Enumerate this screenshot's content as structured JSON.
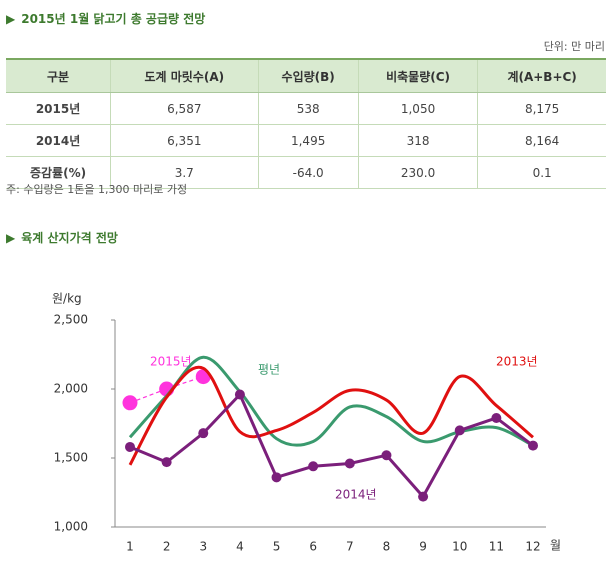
{
  "section1": {
    "title": "2015년 1월 닭고기 총 공급량 전망",
    "unit": "단위: 만 마리"
  },
  "table": {
    "header": [
      "구분",
      "도계 마릿수(A)",
      "수입량(B)",
      "비축물량(C)",
      "계(A+B+C)"
    ],
    "rows": [
      [
        "2015년",
        "6,587",
        "538",
        "1,050",
        "8,175"
      ],
      [
        "2014년",
        "6,351",
        "1,495",
        "318",
        "8,164"
      ],
      [
        "증감률(%)",
        "3.7",
        "-64.0",
        "230.0",
        "0.1"
      ]
    ]
  },
  "note": "주: 수입량은 1톤을 1,300 마리로 가정",
  "section2": {
    "title": "육계 산지가격 전망"
  },
  "chart_data": {
    "type": "line",
    "y_label": "원/kg",
    "x_label": "월",
    "categories": [
      "1",
      "2",
      "3",
      "4",
      "5",
      "6",
      "7",
      "8",
      "9",
      "10",
      "11",
      "12"
    ],
    "ylim": [
      1000,
      2500
    ],
    "yticks": [
      {
        "value": 1000,
        "label": "1,000"
      },
      {
        "value": 1500,
        "label": "1,500"
      },
      {
        "value": 2000,
        "label": "2,000"
      },
      {
        "value": 2500,
        "label": "2,500"
      }
    ],
    "grid": false,
    "series": [
      {
        "name": "2015년",
        "color": "#ff33dd",
        "marker": true,
        "dashed": true,
        "smooth": true,
        "values": [
          1900,
          2000,
          2090,
          null,
          null,
          null,
          null,
          null,
          null,
          null,
          null,
          null
        ]
      },
      {
        "name": "평년",
        "color": "#3a9a6e",
        "marker": false,
        "dashed": false,
        "smooth": true,
        "values": [
          1650,
          1950,
          2230,
          1980,
          1640,
          1620,
          1870,
          1800,
          1620,
          1690,
          1720,
          1590
        ]
      },
      {
        "name": "2013년",
        "color": "#e01010",
        "marker": false,
        "dashed": false,
        "smooth": true,
        "values": [
          1450,
          1940,
          2150,
          1690,
          1700,
          1830,
          1990,
          1920,
          1680,
          2090,
          1880,
          1650
        ]
      },
      {
        "name": "2014년",
        "color": "#7b1f7b",
        "marker": true,
        "dashed": false,
        "smooth": false,
        "values": [
          1580,
          1470,
          1680,
          1960,
          1360,
          1440,
          1460,
          1520,
          1220,
          1700,
          1790,
          1590
        ]
      }
    ]
  }
}
